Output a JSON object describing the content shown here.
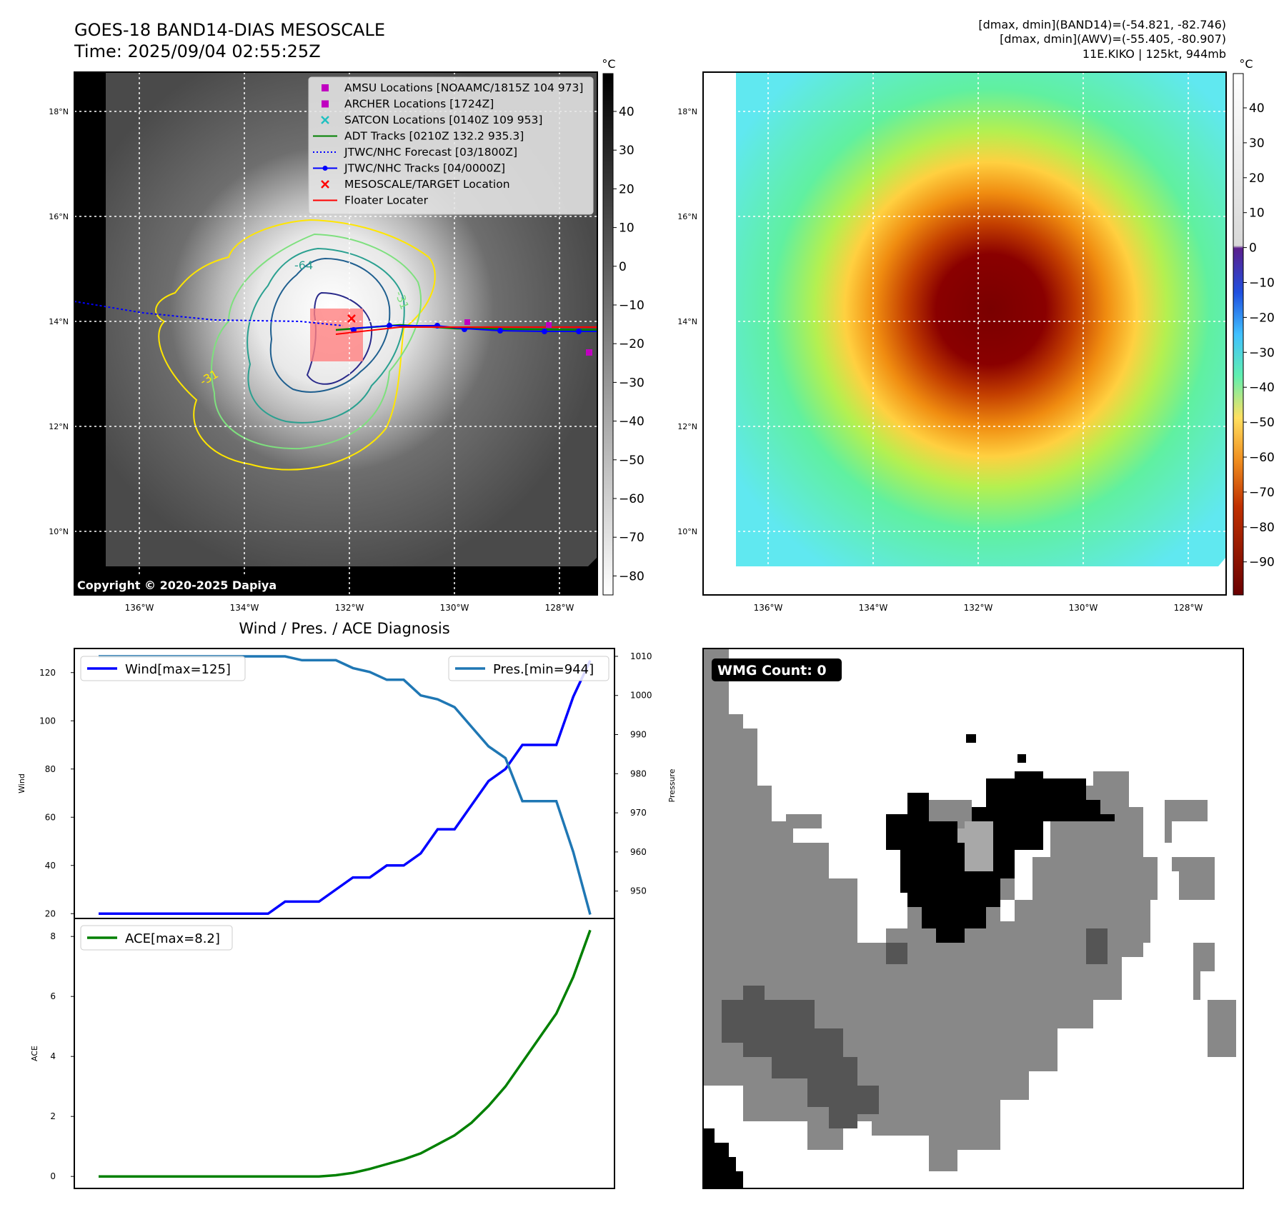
{
  "header": {
    "title_line1": "GOES-18 BAND14-DIAS MESOSCALE",
    "title_line2": "Time: 2025/09/04 02:55:25Z",
    "info_line1": "[dmax, dmin](BAND14)=(-54.821, -82.746)",
    "info_line2": "[dmax, dmin](AWV)=(-55.405, -80.907)",
    "info_line3": "11E.KIKO | 125kt, 944mb"
  },
  "ir_panel": {
    "colorbar_unit": "°C",
    "colorbar_ticks": [
      "40",
      "30",
      "20",
      "10",
      "0",
      "−10",
      "−20",
      "−30",
      "−40",
      "−50",
      "−60",
      "−70",
      "−80"
    ],
    "lat_labels": [
      "18°N",
      "16°N",
      "14°N",
      "12°N",
      "10°N"
    ],
    "lon_labels": [
      "136°W",
      "134°W",
      "132°W",
      "130°W",
      "128°W"
    ],
    "copyright": "Copyright © 2020-2025 Dapiya",
    "contour_labels": [
      "-64",
      "-31",
      "-31"
    ],
    "legend": [
      {
        "label": "AMSU Locations [NOAAMC/1815Z 104 973]",
        "marker": "square",
        "color": "#c000c0"
      },
      {
        "label": "ARCHER Locations [1724Z]",
        "marker": "square",
        "color": "#c000c0"
      },
      {
        "label": "SATCON Locations [0140Z 109 953]",
        "marker": "x",
        "color": "#20c0c0"
      },
      {
        "label": "ADT Tracks [0210Z 132.2 935.3]",
        "marker": "line",
        "color": "#008000"
      },
      {
        "label": "JTWC/NHC Forecast [03/1800Z]",
        "marker": "dotted",
        "color": "#0000ff"
      },
      {
        "label": "JTWC/NHC Tracks [04/0000Z]",
        "marker": "line-dot",
        "color": "#0000ff"
      },
      {
        "label": "MESOSCALE/TARGET Location",
        "marker": "x",
        "color": "#ff0000"
      },
      {
        "label": "Floater Locater",
        "marker": "line",
        "color": "#ff0000"
      }
    ]
  },
  "awv_panel": {
    "colorbar_unit": "°C",
    "colorbar_ticks": [
      "40",
      "30",
      "20",
      "10",
      "0",
      "−10",
      "−20",
      "−30",
      "−40",
      "−50",
      "−60",
      "−70",
      "−80",
      "−90"
    ],
    "lat_labels": [
      "18°N",
      "16°N",
      "14°N",
      "12°N",
      "10°N"
    ],
    "lon_labels": [
      "136°W",
      "134°W",
      "132°W",
      "130°W",
      "128°W"
    ]
  },
  "diagnosis": {
    "title": "Wind / Pres. / ACE Diagnosis",
    "wind_axis_label": "Wind",
    "pressure_axis_label": "Pressure",
    "ace_axis_label": "ACE",
    "wind_legend": "Wind[max=125]",
    "pres_legend": "Pres.[min=944]",
    "ace_legend": "ACE[max=8.2]",
    "colors": {
      "wind": "#0000ff",
      "pressure": "#1f77b4",
      "ace": "#008000"
    }
  },
  "wmg_panel": {
    "label": "WMG Count: 0"
  },
  "chart_data": [
    {
      "type": "line",
      "title": "Wind / Pres. / ACE Diagnosis",
      "ylabel": "Wind",
      "ylim": [
        18,
        130
      ],
      "y_ticks": [
        20,
        40,
        60,
        80,
        100,
        120
      ],
      "series": [
        {
          "name": "Wind[max=125]",
          "values": [
            20,
            20,
            20,
            20,
            20,
            20,
            20,
            20,
            20,
            20,
            20,
            25,
            25,
            25,
            30,
            35,
            35,
            40,
            40,
            45,
            55,
            55,
            65,
            75,
            80,
            90,
            90,
            90,
            110,
            125
          ]
        }
      ]
    },
    {
      "type": "line",
      "ylabel": "Pressure",
      "ylim": [
        943,
        1012
      ],
      "y_ticks": [
        950,
        960,
        970,
        980,
        990,
        1000,
        1010
      ],
      "series": [
        {
          "name": "Pres.[min=944]",
          "values": [
            1010,
            1010,
            1010,
            1010,
            1010,
            1010,
            1010,
            1010,
            1010,
            1010,
            1010,
            1010,
            1009,
            1009,
            1009,
            1007,
            1006,
            1004,
            1004,
            1000,
            999,
            997,
            992,
            987,
            984,
            973,
            973,
            973,
            960,
            944
          ]
        }
      ]
    },
    {
      "type": "line",
      "ylabel": "ACE",
      "ylim": [
        -0.4,
        8.6
      ],
      "y_ticks": [
        0,
        2,
        4,
        6,
        8
      ],
      "series": [
        {
          "name": "ACE[max=8.2]",
          "values": [
            0,
            0,
            0,
            0,
            0,
            0,
            0,
            0,
            0,
            0,
            0,
            0,
            0,
            0,
            0.04,
            0.12,
            0.25,
            0.41,
            0.57,
            0.77,
            1.07,
            1.37,
            1.79,
            2.35,
            3.0,
            3.81,
            4.62,
            5.43,
            6.65,
            8.21
          ]
        }
      ]
    }
  ]
}
